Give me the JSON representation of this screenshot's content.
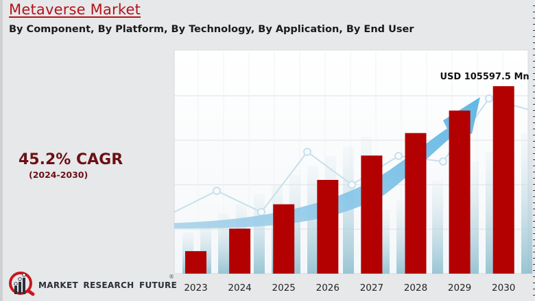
{
  "header": {
    "title": "Metaverse Market",
    "subtitle": "By Component, By Platform, By Technology, By Application, By End User"
  },
  "cagr": {
    "value": "45.2% CAGR",
    "period": "(2024-2030)"
  },
  "logo": {
    "text": "MARKET RESEARCH FUTURE",
    "registered": "®"
  },
  "colors": {
    "bar": "#b30000",
    "title": "#b5121b",
    "cagr": "#6b1015",
    "arrow": "#5ab4e3"
  },
  "chart_data": {
    "type": "bar",
    "title": "Metaverse Market",
    "xlabel": "",
    "ylabel": "",
    "unit": "USD Mn",
    "categories": [
      "2023",
      "2024",
      "2025",
      "2026",
      "2027",
      "2028",
      "2029",
      "2030"
    ],
    "values": [
      null,
      null,
      null,
      null,
      null,
      null,
      null,
      105597.5
    ],
    "relative_heights": [
      0.12,
      0.24,
      0.37,
      0.5,
      0.63,
      0.75,
      0.87,
      1.0
    ],
    "y_axis_scale_shown": false,
    "note": "Only the 2030 value is printed; 2023-2029 values are not labeled and no y-axis scale is shown. relative_heights are bar heights as a fraction of the 2030 bar, read from the drawing.",
    "annotations": [
      {
        "category": "2030",
        "text": "USD 105597.5 Mn"
      }
    ],
    "grid": true,
    "legend": "none"
  }
}
